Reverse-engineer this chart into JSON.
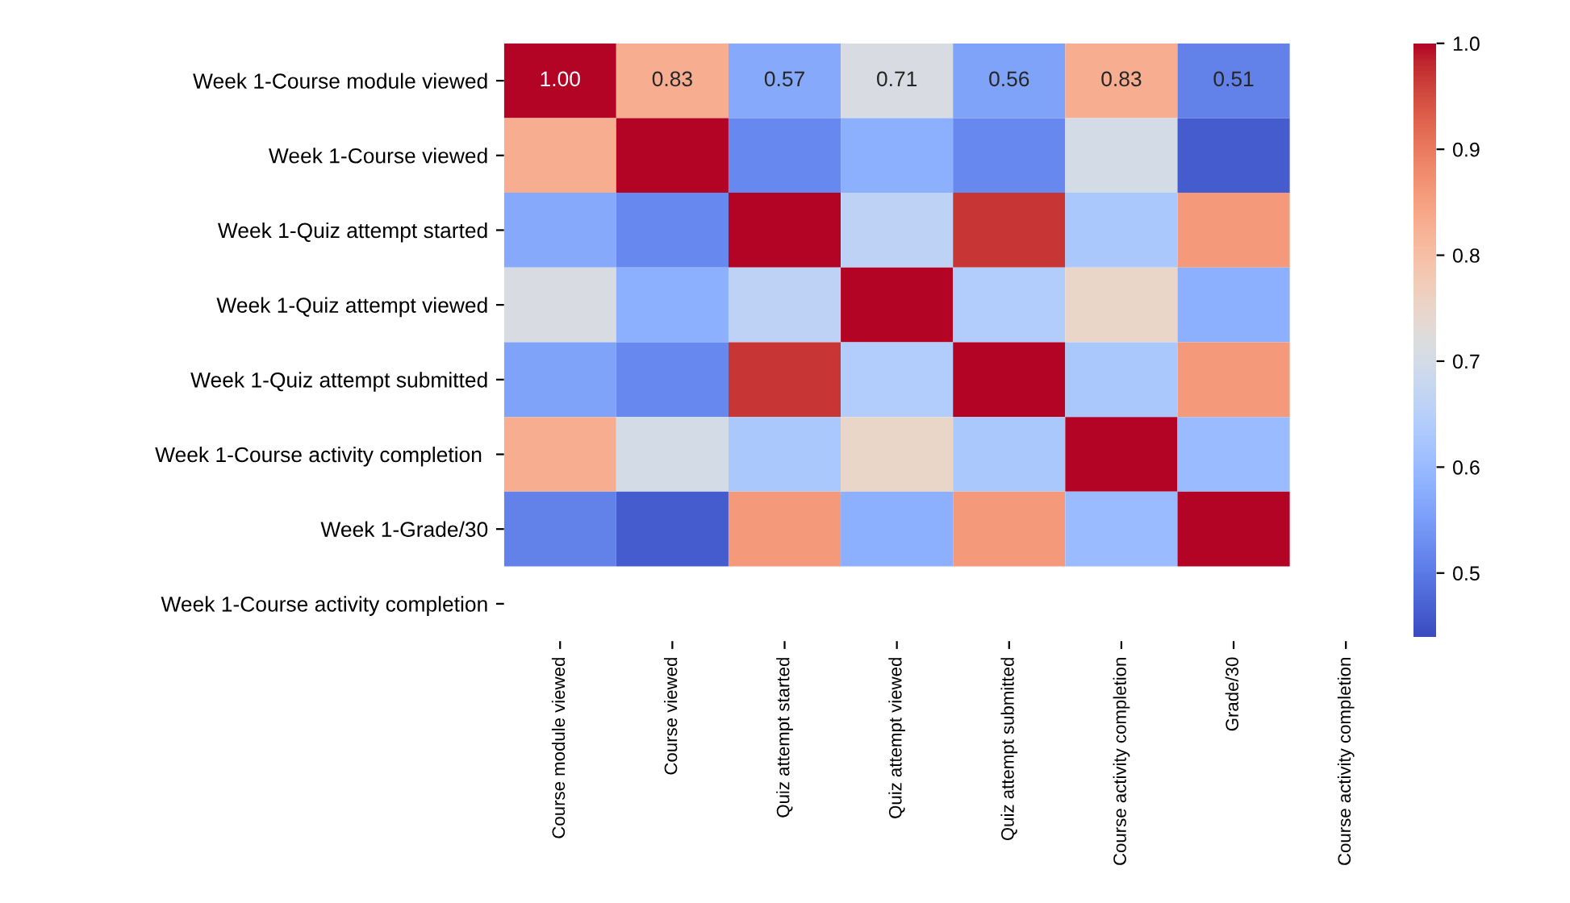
{
  "chart_data": {
    "type": "heatmap",
    "categories": [
      "Course module viewed",
      "Course viewed",
      "Quiz attempt started",
      "Quiz attempt viewed",
      "Quiz attempt submitted",
      "Course activity completion",
      "Grade/30",
      "Course activity completion"
    ],
    "y_categories": [
      "Week 1-Course module viewed",
      "Week 1-Course viewed",
      "Week 1-Quiz attempt started",
      "Week 1-Quiz attempt viewed",
      "Week 1-Quiz attempt submitted",
      "Week 1-Course activity completion ",
      "Week 1-Grade/30",
      "Week 1-Course activity completion"
    ],
    "cells": [
      [
        1.0,
        0.83,
        0.57,
        0.71,
        0.56,
        0.83,
        0.51,
        null
      ],
      [
        0.83,
        1.0,
        0.52,
        0.58,
        0.52,
        0.7,
        0.46,
        null
      ],
      [
        0.57,
        0.52,
        1.0,
        0.66,
        0.97,
        0.63,
        0.86,
        null
      ],
      [
        0.71,
        0.58,
        0.66,
        1.0,
        0.64,
        0.75,
        0.58,
        null
      ],
      [
        0.56,
        0.52,
        0.97,
        0.64,
        1.0,
        0.63,
        0.86,
        null
      ],
      [
        0.83,
        0.7,
        0.63,
        0.75,
        0.63,
        1.0,
        0.6,
        null
      ],
      [
        0.51,
        0.46,
        0.86,
        0.58,
        0.86,
        0.6,
        1.0,
        null
      ],
      [
        null,
        null,
        null,
        null,
        null,
        null,
        null,
        null
      ]
    ],
    "cell_labels": [
      [
        "1.00",
        "0.83",
        "0.57",
        "0.71",
        "0.56",
        "0.83",
        "0.51",
        null
      ],
      [
        null,
        null,
        null,
        null,
        null,
        null,
        null,
        null
      ],
      [
        null,
        null,
        null,
        null,
        null,
        null,
        null,
        null
      ],
      [
        null,
        null,
        null,
        null,
        null,
        null,
        null,
        null
      ],
      [
        null,
        null,
        null,
        null,
        null,
        null,
        null,
        null
      ],
      [
        null,
        null,
        null,
        null,
        null,
        null,
        null,
        null
      ],
      [
        null,
        null,
        null,
        null,
        null,
        null,
        null,
        null
      ],
      [
        null,
        null,
        null,
        null,
        null,
        null,
        null,
        null
      ]
    ],
    "clim": [
      0.44,
      1.0
    ],
    "cticks": [
      0.5,
      0.6,
      0.7,
      0.8,
      0.9,
      {
        "value": 1,
        "label": "1.0"
      }
    ]
  }
}
